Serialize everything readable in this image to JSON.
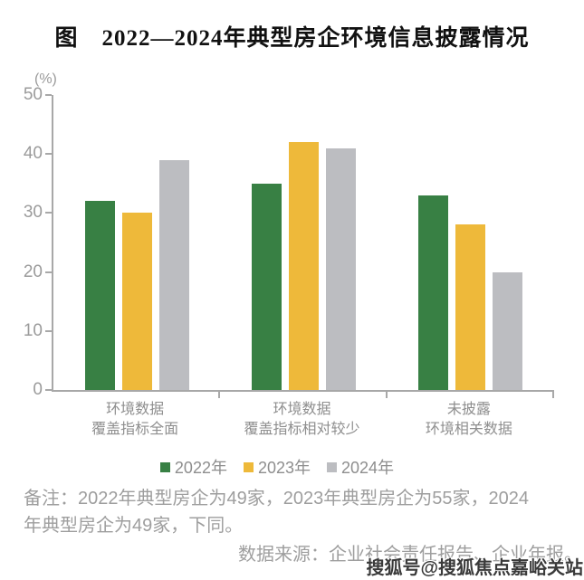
{
  "title": "图　2022—2024年典型房企环境信息披露情况",
  "chart_data": {
    "type": "bar",
    "title": "图　2022—2024年典型房企环境信息披露情况",
    "unit_label": "(%)",
    "ylabel": "(%)",
    "xlabel": "",
    "ylim": [
      0,
      50
    ],
    "yticks": [
      0,
      10,
      20,
      30,
      40,
      50
    ],
    "grid": false,
    "legend_position": "bottom",
    "categories": [
      [
        "环境数据",
        "覆盖指标全面"
      ],
      [
        "环境数据",
        "覆盖指标相对较少"
      ],
      [
        "未披露",
        "环境相关数据"
      ]
    ],
    "series": [
      {
        "name": "2022年",
        "color": "#388044",
        "values": [
          32,
          35,
          33
        ]
      },
      {
        "name": "2023年",
        "color": "#EEB93A",
        "values": [
          30,
          42,
          28
        ]
      },
      {
        "name": "2024年",
        "color": "#BCBDC1",
        "values": [
          39,
          41,
          20
        ]
      }
    ]
  },
  "colors": {
    "bar_green": "#388044",
    "bar_yellow": "#EEB93A",
    "bar_gray": "#BCBDC1",
    "axis": "#a8a8a8",
    "tick_text": "#9b9b9b",
    "label_text": "#8e8e8e",
    "note_text": "#9e9e9e"
  },
  "notes": [
    "备注：2022年典型房企为49家，2023年典型房企为55家，2024",
    "年典型房企为49家，下同。"
  ],
  "source": "数据来源：企业社会责任报告、企业年报。",
  "watermark": "搜狐号@搜狐焦点嘉峪关站"
}
